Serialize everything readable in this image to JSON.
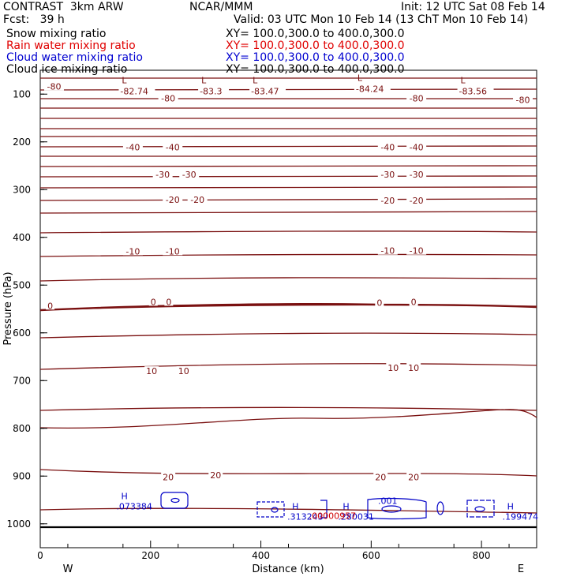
{
  "header": {
    "title": "CONTRAST  3km ARW",
    "forecast": "Fcst:   39 h",
    "center": "NCAR/MMM",
    "init": "Init: 12 UTC Sat 08 Feb 14",
    "valid": "Valid: 03 UTC Mon 10 Feb 14 (13 ChT Mon 10 Feb 14)",
    "fields": [
      {
        "label": "Snow mixing ratio",
        "xy": "XY= 100.0,300.0 to 400.0,300.0",
        "color": "#000000"
      },
      {
        "label": "Rain water mixing ratio",
        "xy": "XY= 100.0,300.0 to 400.0,300.0",
        "color": "#e00000"
      },
      {
        "label": "Cloud water mixing ratio",
        "xy": "XY= 100.0,300.0 to 400.0,300.0",
        "color": "#0000d0"
      },
      {
        "label": "Cloud ice mixing ratio",
        "xy": "XY= 100.0,300.0 to 400.0,300.0",
        "color": "#000000"
      }
    ]
  },
  "chart_data": {
    "type": "line",
    "xlabel": "Distance (km)",
    "ylabel": "Pressure (hPa)",
    "xlim": [
      0,
      900
    ],
    "ylim": [
      1050,
      50
    ],
    "x_ticks": [
      0,
      200,
      400,
      600,
      800
    ],
    "y_ticks": [
      100,
      200,
      300,
      400,
      500,
      600,
      700,
      800,
      900,
      1000
    ],
    "x_end_labels": [
      "W",
      "E"
    ],
    "contour_color": "#7a1010",
    "cloud_color": "#0000c8",
    "rain_color": "#d00000",
    "temperature_labels": [
      {
        "text": "-80",
        "x": 25,
        "p": 84
      },
      {
        "text": "-80",
        "x": 232,
        "p": 109
      },
      {
        "text": "-80",
        "x": 682,
        "p": 109
      },
      {
        "text": "-80",
        "x": 875,
        "p": 112
      },
      {
        "text": "-40",
        "x": 168,
        "p": 211
      },
      {
        "text": "-40",
        "x": 240,
        "p": 211
      },
      {
        "text": "-40",
        "x": 630,
        "p": 211
      },
      {
        "text": "-40",
        "x": 682,
        "p": 211
      },
      {
        "text": "-30",
        "x": 222,
        "p": 268
      },
      {
        "text": "-30",
        "x": 270,
        "p": 268
      },
      {
        "text": "-30",
        "x": 630,
        "p": 268
      },
      {
        "text": "-30",
        "x": 682,
        "p": 268
      },
      {
        "text": "-20",
        "x": 240,
        "p": 321
      },
      {
        "text": "-20",
        "x": 285,
        "p": 321
      },
      {
        "text": "-20",
        "x": 630,
        "p": 323
      },
      {
        "text": "-20",
        "x": 682,
        "p": 323
      },
      {
        "text": "-10",
        "x": 168,
        "p": 429
      },
      {
        "text": "-10",
        "x": 240,
        "p": 429
      },
      {
        "text": "-10",
        "x": 630,
        "p": 428
      },
      {
        "text": "-10",
        "x": 682,
        "p": 428
      },
      {
        "text": "0",
        "x": 18,
        "p": 543
      },
      {
        "text": "0",
        "x": 205,
        "p": 535
      },
      {
        "text": "0",
        "x": 233,
        "p": 535
      },
      {
        "text": "0",
        "x": 615,
        "p": 537
      },
      {
        "text": "0",
        "x": 677,
        "p": 535
      },
      {
        "text": "10",
        "x": 202,
        "p": 680
      },
      {
        "text": "10",
        "x": 260,
        "p": 680
      },
      {
        "text": "10",
        "x": 640,
        "p": 673
      },
      {
        "text": "10",
        "x": 677,
        "p": 673
      },
      {
        "text": "20",
        "x": 232,
        "p": 902
      },
      {
        "text": "20",
        "x": 318,
        "p": 898
      },
      {
        "text": "20",
        "x": 617,
        "p": 902
      },
      {
        "text": "20",
        "x": 677,
        "p": 902
      }
    ],
    "minima_L": [
      {
        "label": "L",
        "value": "-82.74",
        "x": 148,
        "p": 77
      },
      {
        "label": "L",
        "value": "-83.3",
        "x": 292,
        "p": 77
      },
      {
        "label": "L",
        "value": "-83.47",
        "x": 385,
        "p": 77
      },
      {
        "label": "L",
        "value": "-84.24",
        "x": 575,
        "p": 72
      },
      {
        "label": "L",
        "value": "-83.56",
        "x": 762,
        "p": 77
      }
    ],
    "maxima_H": [
      {
        "label": "H",
        "value": ".073384",
        "x": 138,
        "p": 952
      },
      {
        "label": "H",
        "value": ".313243",
        "x": 448,
        "p": 973
      },
      {
        "label": "H",
        "value": ".280031",
        "x": 540,
        "p": 973
      },
      {
        "label": "H",
        "value": ".199474",
        "x": 838,
        "p": 973
      }
    ],
    "annotations": [
      {
        "text": ".001",
        "x": 630,
        "p": 958,
        "color": "#0000c8"
      },
      {
        "text": ".00000957",
        "x": 530,
        "p": 990,
        "color": "#d00000"
      }
    ]
  }
}
